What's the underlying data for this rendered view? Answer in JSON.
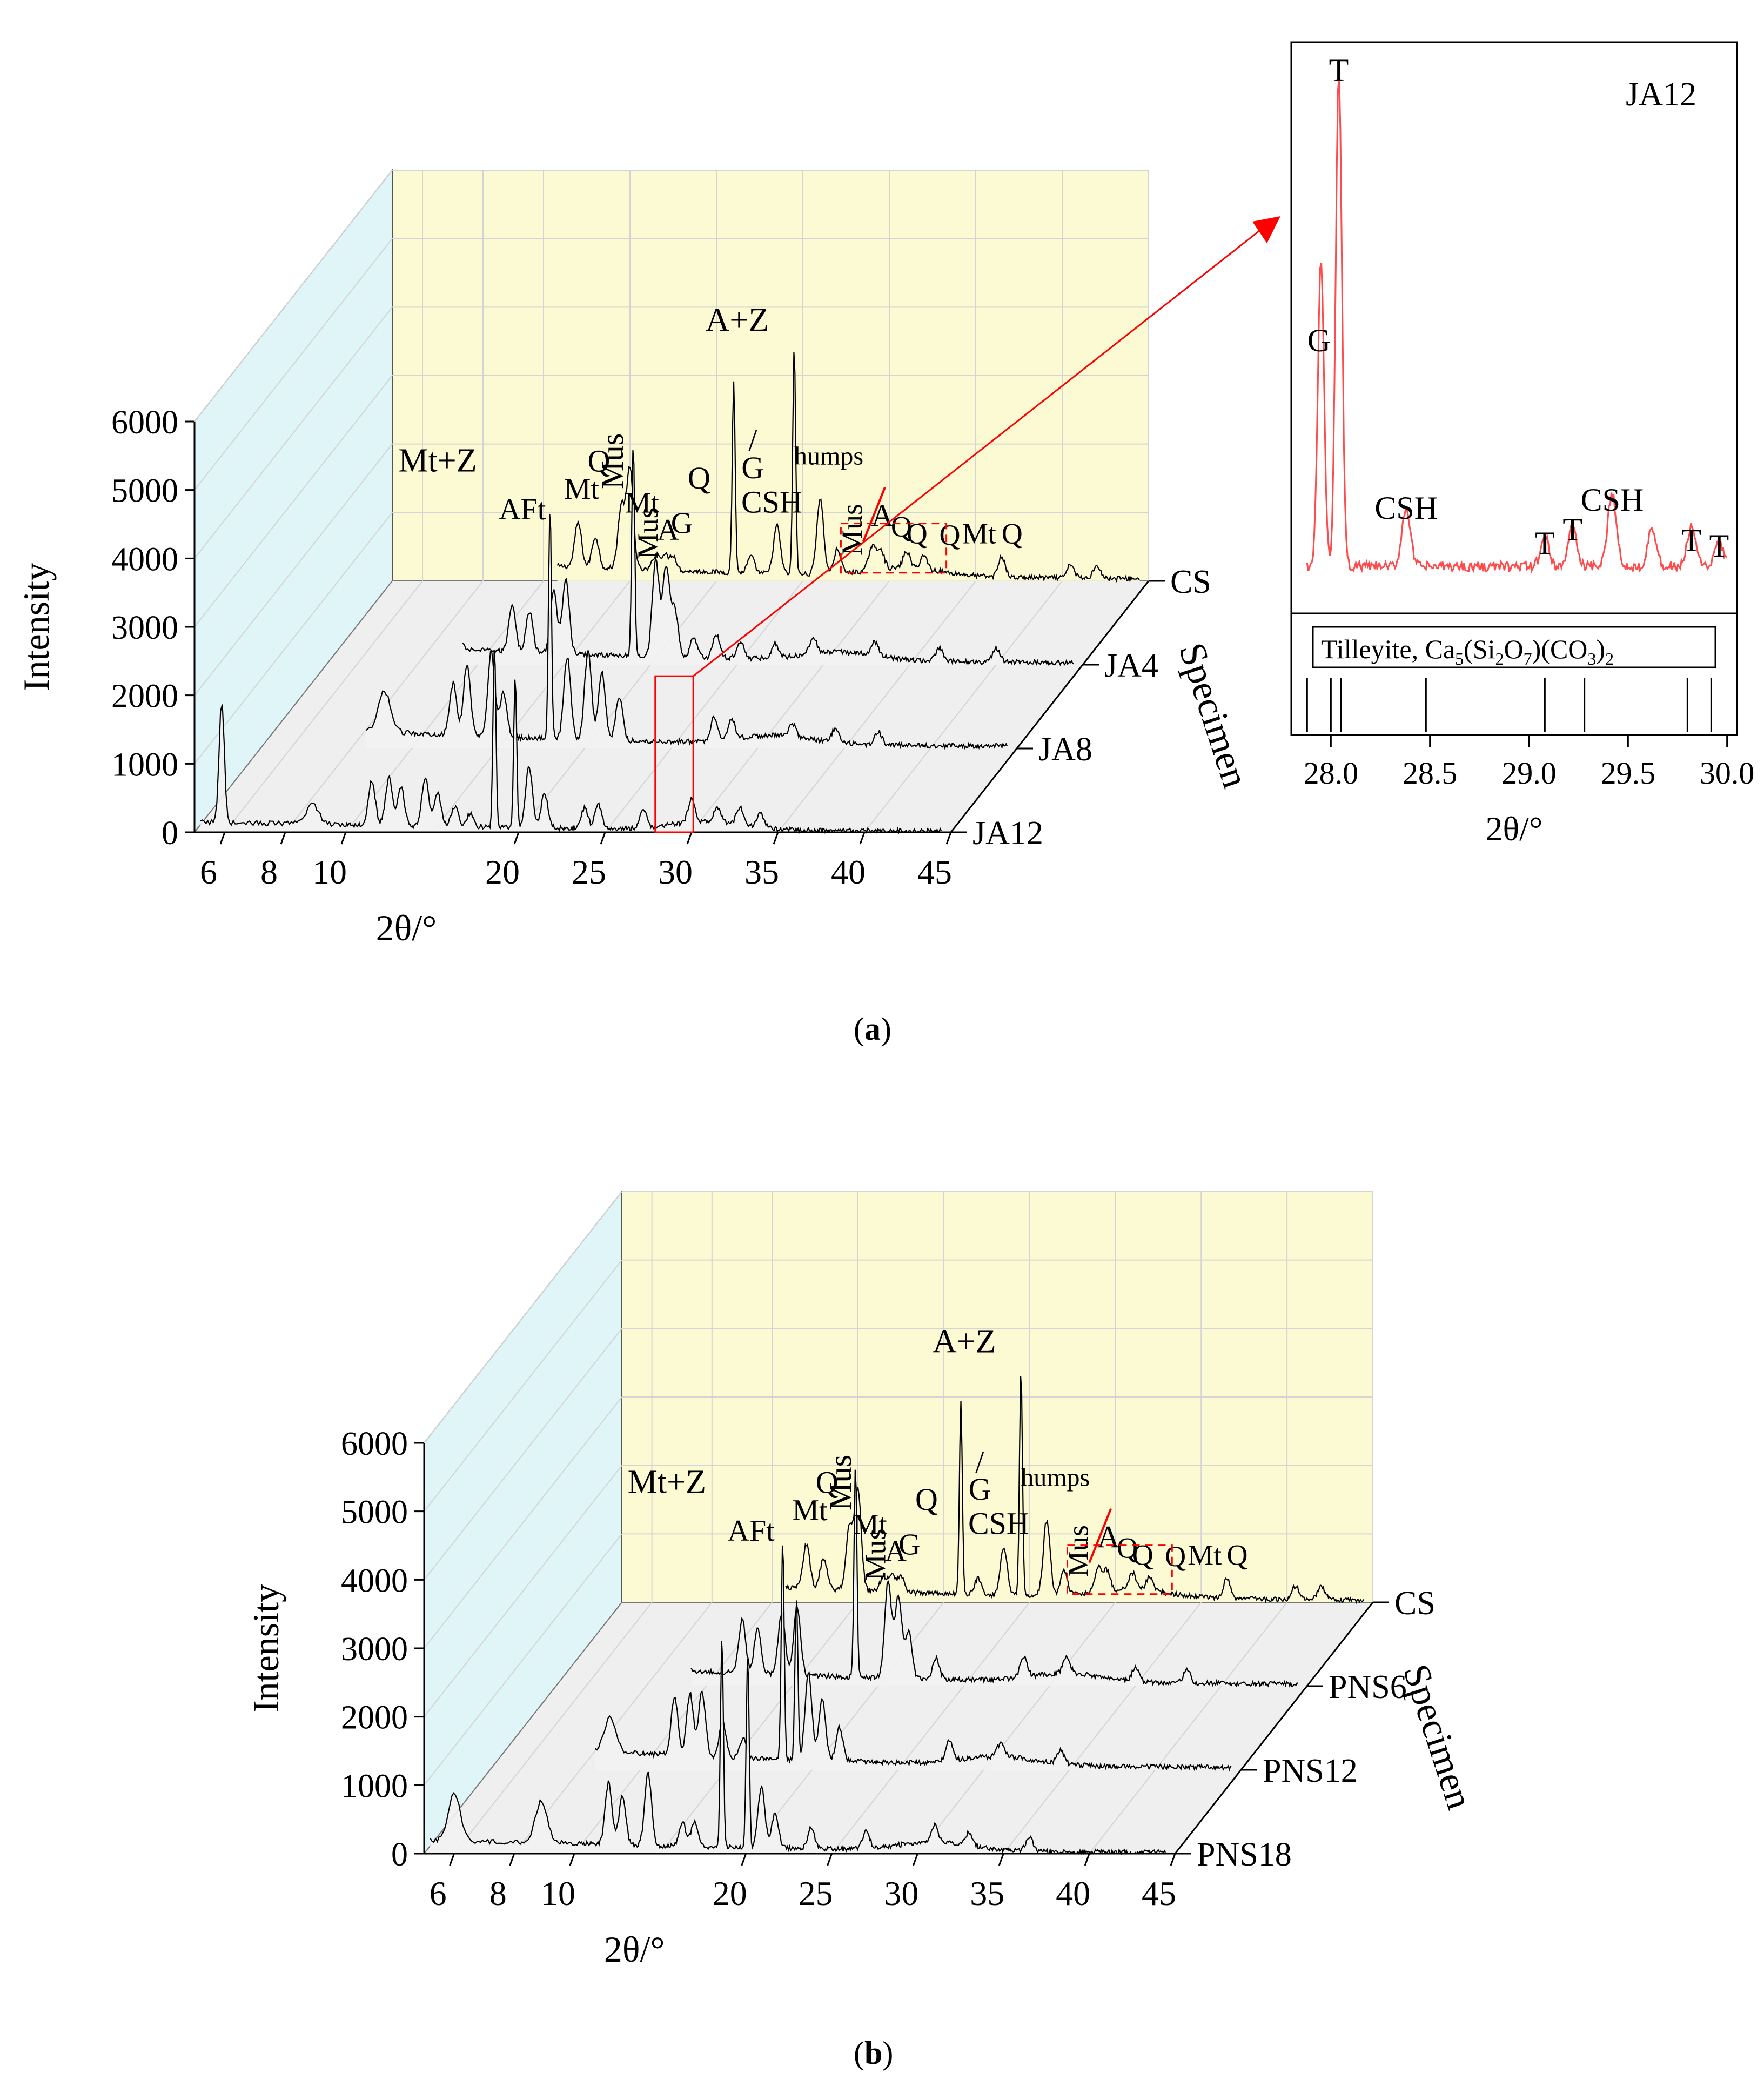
{
  "figure": {
    "caption_a": "a",
    "caption_b": "b",
    "colors": {
      "back_wall": "#fcfad2",
      "side_wall": "#dff5f7",
      "floor": "#efefef",
      "grid": "#d4d4d4",
      "line": "#000000",
      "highlight": "#ff0000",
      "inset_line": "#ff4b4b"
    }
  },
  "chart_data": [
    {
      "id": "a",
      "type": "line",
      "subtype": "stacked 3D XRD waterfall",
      "xlabel": "2θ/°",
      "ylabel": "Intensity",
      "zlabel": "Specimen",
      "xlim": [
        5,
        45
      ],
      "ylim": [
        0,
        6000
      ],
      "x_ticks": [
        "6",
        "8",
        "10",
        "20",
        "25",
        "30",
        "35",
        "40",
        "45"
      ],
      "y_ticks": [
        "0",
        "1000",
        "2000",
        "3000",
        "4000",
        "5000",
        "6000"
      ],
      "specimens": [
        "CS",
        "JA4",
        "JA8",
        "JA12"
      ],
      "peak_labels": [
        "Mt+Z",
        "AFt",
        "Mt",
        "Q",
        "Mus",
        "Mt",
        "Mus",
        "A",
        "G",
        "Q",
        "A+Z",
        "/",
        "G",
        "CSH",
        "humps",
        "Mus",
        "A",
        "Q",
        "Q",
        "Q",
        "Mt",
        "Q"
      ],
      "series": [
        {
          "name": "CS",
          "baseline": 300,
          "peaks": [
            [
              6.2,
              900
            ],
            [
              9.0,
              300
            ],
            [
              12.0,
              650
            ],
            [
              13.0,
              450
            ],
            [
              14.5,
              900
            ],
            [
              15.0,
              1450
            ],
            [
              16.5,
              220
            ],
            [
              17.0,
              220
            ],
            [
              17.5,
              220
            ],
            [
              21.0,
              2800
            ],
            [
              22.0,
              240
            ],
            [
              23.5,
              700
            ],
            [
              24.5,
              3300
            ],
            [
              26.0,
              1100
            ],
            [
              27.0,
              360
            ],
            [
              29.0,
              350
            ],
            [
              29.5,
              300
            ],
            [
              31.0,
              240
            ],
            [
              32.0,
              200
            ],
            [
              36.5,
              300
            ],
            [
              40.5,
              200
            ],
            [
              42.0,
              200
            ]
          ]
        },
        {
          "name": "JA4",
          "baseline": 280,
          "peaks": [
            [
              6.3,
              950
            ],
            [
              9.1,
              650
            ],
            [
              12.0,
              700
            ],
            [
              13.0,
              600
            ],
            [
              14.4,
              900
            ],
            [
              15.1,
              1100
            ],
            [
              19.0,
              3100
            ],
            [
              20.3,
              1400
            ],
            [
              20.9,
              1300
            ],
            [
              21.4,
              700
            ],
            [
              22.5,
              300
            ],
            [
              23.8,
              350
            ],
            [
              25.2,
              250
            ],
            [
              27.2,
              200
            ],
            [
              29.4,
              250
            ],
            [
              33.0,
              200
            ],
            [
              36.7,
              200
            ],
            [
              40.0,
              200
            ]
          ]
        },
        {
          "name": "JA8",
          "baseline": 300,
          "peaks": [
            [
              6.2,
              1400
            ],
            [
              9.1,
              600
            ],
            [
              12.4,
              750
            ],
            [
              13.2,
              1050
            ],
            [
              14.6,
              1250
            ],
            [
              15.3,
              650
            ],
            [
              18.0,
              3400
            ],
            [
              19.0,
              1200
            ],
            [
              20.2,
              1300
            ],
            [
              21.0,
              1000
            ],
            [
              22.0,
              650
            ],
            [
              27.5,
              350
            ],
            [
              28.5,
              300
            ],
            [
              32.0,
              200
            ],
            [
              34.5,
              200
            ],
            [
              37.0,
              200
            ]
          ]
        },
        {
          "name": "JA12",
          "baseline": 150,
          "peaks": [
            [
              5.9,
              1800
            ],
            [
              8.9,
              300
            ],
            [
              11.5,
              650
            ],
            [
              12.5,
              700
            ],
            [
              13.2,
              550
            ],
            [
              14.6,
              700
            ],
            [
              15.3,
              500
            ],
            [
              16.3,
              300
            ],
            [
              17.2,
              200
            ],
            [
              18.6,
              2650
            ],
            [
              19.8,
              2200
            ],
            [
              20.6,
              900
            ],
            [
              21.5,
              500
            ],
            [
              23.8,
              300
            ],
            [
              24.6,
              350
            ],
            [
              27.2,
              250
            ],
            [
              30.0,
              350
            ],
            [
              31.5,
              200
            ],
            [
              32.8,
              250
            ],
            [
              34.0,
              200
            ]
          ]
        }
      ],
      "inset": {
        "title": "JA12",
        "type": "line",
        "xlabel": "2θ/°",
        "xlim": [
          27.8,
          30.05
        ],
        "x_ticks": [
          "28.0",
          "28.5",
          "29.0",
          "29.5",
          "30.0"
        ],
        "peak_labels": [
          "T",
          "G",
          "CSH",
          "T",
          "T",
          "CSH",
          "T",
          "T"
        ],
        "peaks": [
          [
            27.95,
            0.62
          ],
          [
            28.04,
            1.0
          ],
          [
            28.38,
            0.12
          ],
          [
            29.08,
            0.06
          ],
          [
            29.22,
            0.08
          ],
          [
            29.42,
            0.15
          ],
          [
            29.62,
            0.08
          ],
          [
            29.82,
            0.08
          ],
          [
            29.96,
            0.05
          ]
        ],
        "reference_label": "Tilleyite, Ca5(Si2O7)(CO3)2",
        "reference_parts": [
          "Tilleyite, Ca",
          "5",
          "(Si",
          "2",
          "O",
          "7",
          ")(CO",
          "3",
          ")",
          "2"
        ],
        "reference_lines": [
          27.88,
          28.0,
          28.05,
          28.48,
          29.08,
          29.28,
          29.8,
          29.92
        ]
      }
    },
    {
      "id": "b",
      "type": "line",
      "subtype": "stacked 3D XRD waterfall",
      "xlabel": "2θ/°",
      "ylabel": "Intensity",
      "zlabel": "Specimen",
      "xlim": [
        5,
        45
      ],
      "ylim": [
        0,
        6000
      ],
      "x_ticks": [
        "6",
        "8",
        "10",
        "20",
        "25",
        "30",
        "35",
        "40",
        "45"
      ],
      "y_ticks": [
        "0",
        "1000",
        "2000",
        "3000",
        "4000",
        "5000",
        "6000"
      ],
      "specimens": [
        "CS",
        "PNS6",
        "PNS12",
        "PNS18"
      ],
      "peak_labels": [
        "Mt+Z",
        "AFt",
        "Mt",
        "Q",
        "Mus",
        "Mt",
        "Mus",
        "A",
        "G",
        "Q",
        "A+Z",
        "/",
        "G",
        "CSH",
        "humps",
        "Mus",
        "A",
        "Q",
        "Q",
        "Q",
        "Mt",
        "Q"
      ],
      "series": [
        {
          "name": "CS",
          "baseline": 300,
          "peaks": [
            [
              6.2,
              900
            ],
            [
              9.0,
              300
            ],
            [
              12.0,
              650
            ],
            [
              13.0,
              450
            ],
            [
              14.5,
              900
            ],
            [
              15.0,
              1450
            ],
            [
              16.5,
              220
            ],
            [
              17.0,
              220
            ],
            [
              17.5,
              220
            ],
            [
              21.0,
              2800
            ],
            [
              22.0,
              240
            ],
            [
              23.5,
              700
            ],
            [
              24.5,
              3300
            ],
            [
              26.0,
              1100
            ],
            [
              27.0,
              360
            ],
            [
              29.0,
              350
            ],
            [
              29.5,
              300
            ],
            [
              31.0,
              240
            ],
            [
              32.0,
              200
            ],
            [
              36.5,
              300
            ],
            [
              40.5,
              200
            ],
            [
              42.0,
              200
            ]
          ]
        },
        {
          "name": "PNS6",
          "baseline": 280,
          "peaks": [
            [
              6.3,
              1100
            ],
            [
              9.0,
              600
            ],
            [
              12.1,
              800
            ],
            [
              13.0,
              650
            ],
            [
              14.4,
              900
            ],
            [
              15.3,
              1000
            ],
            [
              18.7,
              3100
            ],
            [
              20.6,
              1400
            ],
            [
              21.2,
              1200
            ],
            [
              21.8,
              700
            ],
            [
              23.4,
              300
            ],
            [
              28.5,
              300
            ],
            [
              31.0,
              250
            ],
            [
              35.0,
              200
            ],
            [
              38.0,
              200
            ]
          ]
        },
        {
          "name": "PNS12",
          "baseline": 320,
          "peaks": [
            [
              6.2,
              1200
            ],
            [
              9.0,
              500
            ],
            [
              12.0,
              850
            ],
            [
              12.9,
              900
            ],
            [
              13.6,
              950
            ],
            [
              14.8,
              500
            ],
            [
              16.0,
              300
            ],
            [
              18.3,
              3200
            ],
            [
              19.1,
              2400
            ],
            [
              19.8,
              1300
            ],
            [
              20.6,
              900
            ],
            [
              21.6,
              500
            ],
            [
              28.0,
              300
            ],
            [
              31.0,
              200
            ],
            [
              34.5,
              200
            ]
          ]
        },
        {
          "name": "PNS18",
          "baseline": 200,
          "peaks": [
            [
              6.0,
              700
            ],
            [
              8.9,
              600
            ],
            [
              12.0,
              900
            ],
            [
              12.8,
              700
            ],
            [
              14.3,
              1050
            ],
            [
              16.3,
              350
            ],
            [
              17.0,
              350
            ],
            [
              18.6,
              3100
            ],
            [
              20.1,
              2800
            ],
            [
              20.9,
              900
            ],
            [
              21.7,
              500
            ],
            [
              23.8,
              300
            ],
            [
              27.0,
              250
            ],
            [
              31.0,
              250
            ],
            [
              33.0,
              200
            ],
            [
              36.5,
              200
            ]
          ]
        }
      ]
    }
  ]
}
